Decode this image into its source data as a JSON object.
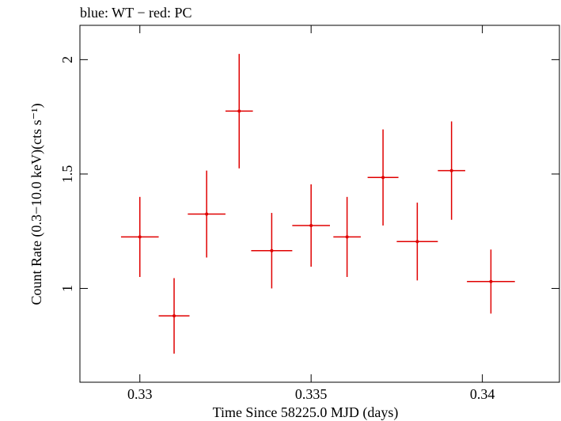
{
  "chart_data": {
    "type": "scatter",
    "title": "blue: WT − red: PC",
    "xlabel": "Time Since 58225.0 MJD (days)",
    "ylabel": "Count Rate (0.3−10.0 keV)(cts s⁻¹)",
    "xlim": [
      0.32825,
      0.34225
    ],
    "ylim": [
      0.59,
      2.15
    ],
    "x_ticks": [
      {
        "value": 0.33,
        "label": "0.33"
      },
      {
        "value": 0.335,
        "label": "0.335"
      },
      {
        "value": 0.34,
        "label": "0.34"
      }
    ],
    "y_ticks": [
      {
        "value": 1.0,
        "label": "1"
      },
      {
        "value": 1.5,
        "label": "1.5"
      },
      {
        "value": 2.0,
        "label": "2"
      }
    ],
    "series": [
      {
        "color": "#e00000",
        "points": [
          {
            "x": 0.33,
            "xerr": 0.00055,
            "y": 1.225,
            "yerr": 0.175
          },
          {
            "x": 0.331,
            "xerr": 0.00045,
            "y": 0.88,
            "yerr": 0.165
          },
          {
            "x": 0.33195,
            "xerr": 0.00055,
            "y": 1.325,
            "yerr": 0.19
          },
          {
            "x": 0.3329,
            "xerr": 0.0004,
            "y": 1.775,
            "yerr": 0.25
          },
          {
            "x": 0.33385,
            "xerr": 0.0006,
            "y": 1.165,
            "yerr": 0.165
          },
          {
            "x": 0.335,
            "xerr": 0.00055,
            "y": 1.275,
            "yerr": 0.18
          },
          {
            "x": 0.33605,
            "xerr": 0.0004,
            "y": 1.225,
            "yerr": 0.175
          },
          {
            "x": 0.3371,
            "xerr": 0.00045,
            "y": 1.485,
            "yerr": 0.21
          },
          {
            "x": 0.3381,
            "xerr": 0.0006,
            "y": 1.205,
            "yerr": 0.17
          },
          {
            "x": 0.3391,
            "xerr": 0.0004,
            "y": 1.515,
            "yerr": 0.215
          },
          {
            "x": 0.34025,
            "xerr": 0.0007,
            "y": 1.03,
            "yerr": 0.14
          }
        ]
      }
    ]
  }
}
